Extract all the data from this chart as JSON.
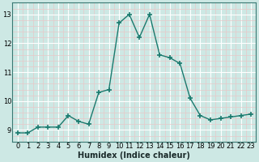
{
  "xlabel": "Humidex (Indice chaleur)",
  "x": [
    0,
    1,
    2,
    3,
    4,
    5,
    6,
    7,
    8,
    9,
    10,
    11,
    12,
    13,
    14,
    15,
    16,
    17,
    18,
    19,
    20,
    21,
    22,
    23
  ],
  "y": [
    8.9,
    8.9,
    9.1,
    9.1,
    9.1,
    9.5,
    9.3,
    9.2,
    10.3,
    10.4,
    12.7,
    13.0,
    12.2,
    13.0,
    11.6,
    11.5,
    11.3,
    10.1,
    9.5,
    9.35,
    9.4,
    9.45,
    9.5,
    9.55
  ],
  "ylim": [
    8.6,
    13.4
  ],
  "xlim": [
    -0.5,
    23.5
  ],
  "yticks": [
    9,
    10,
    11,
    12,
    13
  ],
  "xticks": [
    0,
    1,
    2,
    3,
    4,
    5,
    6,
    7,
    8,
    9,
    10,
    11,
    12,
    13,
    14,
    15,
    16,
    17,
    18,
    19,
    20,
    21,
    22,
    23
  ],
  "line_color": "#1a7a6e",
  "marker": "+",
  "bg_color": "#cde8e4",
  "major_grid_color": "#ffffff",
  "minor_grid_color": "#e8c8c8",
  "xlabel_fontsize": 7,
  "tick_fontsize": 6,
  "linewidth": 1.0,
  "markersize": 4
}
